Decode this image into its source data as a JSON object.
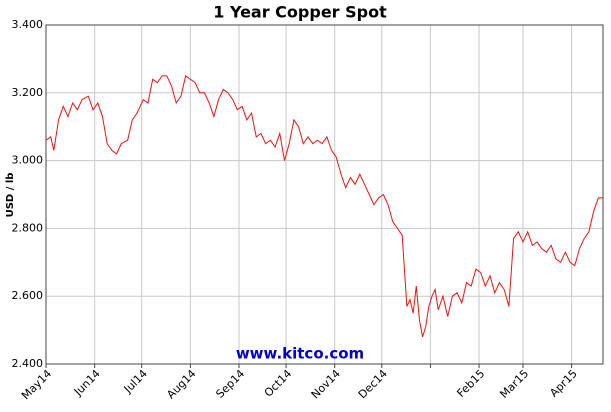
{
  "chart_data": {
    "type": "line",
    "title": "1 Year Copper Spot",
    "ylabel": "USD / lb",
    "annotation": "www.kitco.com",
    "color": "#ee1111",
    "grid": true,
    "ylim": [
      2.4,
      3.4
    ],
    "yticks": [
      {
        "value": 2.4,
        "label": "2.400"
      },
      {
        "value": 2.6,
        "label": "2.600"
      },
      {
        "value": 2.8,
        "label": "2.800"
      },
      {
        "value": 3.0,
        "label": "3.000"
      },
      {
        "value": 3.2,
        "label": "3.200"
      },
      {
        "value": 3.4,
        "label": "3.400"
      }
    ],
    "xlim": [
      0,
      355
    ],
    "xticks": [
      {
        "value": 0,
        "label": "May14"
      },
      {
        "value": 31,
        "label": "Jun14"
      },
      {
        "value": 61,
        "label": "Jul14"
      },
      {
        "value": 92,
        "label": "Aug14"
      },
      {
        "value": 123,
        "label": "Sep14"
      },
      {
        "value": 153,
        "label": "Oct14"
      },
      {
        "value": 184,
        "label": "Nov14"
      },
      {
        "value": 214,
        "label": "Dec14"
      },
      {
        "value": 245,
        "label": null
      },
      {
        "value": 276,
        "label": "Feb15"
      },
      {
        "value": 304,
        "label": "Mar15"
      },
      {
        "value": 335,
        "label": "Apr15"
      }
    ],
    "x": [
      0,
      3,
      5,
      8,
      11,
      14,
      17,
      20,
      23,
      27,
      30,
      33,
      36,
      39,
      42,
      45,
      48,
      52,
      55,
      58,
      62,
      65,
      68,
      71,
      74,
      77,
      80,
      83,
      86,
      89,
      92,
      95,
      98,
      101,
      104,
      107,
      110,
      113,
      116,
      119,
      122,
      125,
      128,
      131,
      134,
      137,
      140,
      143,
      146,
      149,
      152,
      155,
      158,
      161,
      164,
      167,
      170,
      173,
      176,
      179,
      182,
      185,
      188,
      191,
      194,
      197,
      200,
      203,
      206,
      209,
      212,
      215,
      218,
      221,
      224,
      227,
      230,
      232,
      234,
      236,
      238,
      240,
      242,
      244,
      246,
      248,
      250,
      253,
      256,
      259,
      262,
      265,
      268,
      271,
      274,
      277,
      280,
      283,
      286,
      289,
      292,
      295,
      298,
      301,
      304,
      307,
      310,
      313,
      316,
      319,
      322,
      325,
      328,
      331,
      334,
      337,
      340,
      343,
      346,
      349,
      352,
      355
    ],
    "values": [
      3.06,
      3.07,
      3.03,
      3.12,
      3.16,
      3.13,
      3.17,
      3.15,
      3.18,
      3.19,
      3.15,
      3.17,
      3.13,
      3.05,
      3.03,
      3.02,
      3.05,
      3.06,
      3.12,
      3.14,
      3.18,
      3.17,
      3.24,
      3.23,
      3.25,
      3.25,
      3.22,
      3.17,
      3.19,
      3.25,
      3.24,
      3.23,
      3.2,
      3.2,
      3.17,
      3.13,
      3.18,
      3.21,
      3.2,
      3.18,
      3.15,
      3.16,
      3.12,
      3.14,
      3.07,
      3.08,
      3.05,
      3.06,
      3.04,
      3.08,
      3.0,
      3.05,
      3.12,
      3.1,
      3.05,
      3.07,
      3.05,
      3.06,
      3.05,
      3.07,
      3.03,
      3.01,
      2.96,
      2.92,
      2.95,
      2.93,
      2.96,
      2.93,
      2.9,
      2.87,
      2.89,
      2.9,
      2.87,
      2.82,
      2.8,
      2.78,
      2.57,
      2.59,
      2.55,
      2.63,
      2.53,
      2.48,
      2.51,
      2.57,
      2.6,
      2.62,
      2.56,
      2.6,
      2.54,
      2.6,
      2.61,
      2.58,
      2.64,
      2.63,
      2.68,
      2.67,
      2.63,
      2.66,
      2.61,
      2.64,
      2.62,
      2.57,
      2.77,
      2.79,
      2.76,
      2.79,
      2.75,
      2.76,
      2.74,
      2.73,
      2.75,
      2.71,
      2.7,
      2.73,
      2.7,
      2.69,
      2.74,
      2.77,
      2.79,
      2.85,
      2.89,
      2.89
    ]
  }
}
